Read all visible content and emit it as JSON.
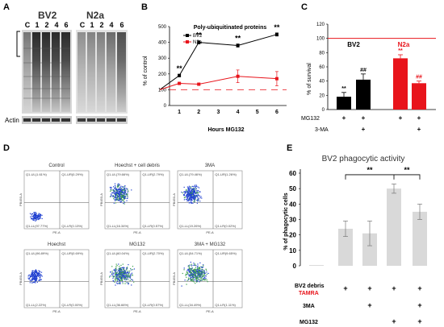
{
  "panels": {
    "A": "A",
    "B": "B",
    "C": "C",
    "D": "D",
    "E": "E"
  },
  "panelA": {
    "bv2_title": "BV2",
    "n2a_title": "N2a",
    "lanes": [
      "C",
      "1",
      "2",
      "4",
      "6"
    ],
    "actin_label": "Actin"
  },
  "panelB": {
    "title": "Poly-ubiquitinated proteins",
    "ylabel": "% of control",
    "xlabel": "Hours MG132",
    "legend": [
      "BV2",
      "N2a"
    ],
    "star_labels": [
      "**",
      "**",
      "**",
      "**"
    ],
    "colors": {
      "bv2": "#000000",
      "n2a": "#e8141b"
    }
  },
  "panelC": {
    "ylabel": "% of survival",
    "group_labels": [
      "BV2",
      "N2a"
    ],
    "row_labels": [
      "MG132",
      "3-MA"
    ],
    "row_signs": [
      [
        "+",
        "+",
        "+",
        "+"
      ],
      [
        "",
        "+",
        "",
        "+"
      ]
    ],
    "sig_labels": [
      "**",
      "##",
      "**",
      "##"
    ],
    "colors": {
      "bv2": "#000000",
      "n2a": "#e8141b"
    }
  },
  "panelD": {
    "titles": [
      "Control",
      "Hoechst + cell debris",
      "3MA",
      "Hoechst",
      "MG132",
      "3MA + MG132"
    ],
    "quadrants": [
      [
        "Q1-UL(1.61%)",
        "Q1-UR(0.29%)",
        "Q1-LL(97.77%)",
        "Q1-LR(0.13%)"
      ],
      [
        "Q1-UL(79.66%)",
        "Q1-UR(2.79%)",
        "Q1-LL(16.34%)",
        "Q1-LR(0.57%)"
      ],
      [
        "Q1-UL(79.46%)",
        "Q1-UR(1.26%)",
        "Q1-LL(19.26%)",
        "Q1-LR(0.02%)"
      ],
      [
        "Q1-UL(96.89%)",
        "Q1-UR(0.69%)",
        "Q1-LL(2.22%)",
        "Q1-LR(0.00%)"
      ],
      [
        "Q1-UL(60.04%)",
        "Q1-UR(2.70%)",
        "Q1-LL(36.66%)",
        "Q1-LR(0.57%)"
      ],
      [
        "Q1-UL(54.71%)",
        "Q1-UR(9.65%)",
        "Q1-LL(34.49%)",
        "Q1-LR(1.11%)"
      ]
    ],
    "axis_y": "PB450-A",
    "axis_x": "PE-A"
  },
  "panelE": {
    "title": "BV2 phagocytic activity",
    "ylabel": "% of phagocytic cells",
    "row_labels": [
      "BV2 debris",
      "TAMRA",
      "3MA",
      "MG132"
    ],
    "row_signs": [
      [
        "+",
        "+",
        "+",
        "+"
      ],
      [
        "",
        "+",
        "",
        "+"
      ],
      [
        "",
        "",
        "+",
        "+"
      ]
    ],
    "sig_labels": [
      "**",
      "**"
    ],
    "colors": {
      "bar": "#d9d9d9",
      "tamra": "#e8141b"
    }
  },
  "chart_data": [
    {
      "type": "line",
      "title": "Poly-ubiquitinated proteins",
      "xlabel": "Hours MG132",
      "ylabel": "% of control",
      "x": [
        0,
        1,
        2,
        4,
        6
      ],
      "xticks": [
        1,
        2,
        3,
        4,
        5,
        6
      ],
      "yticks": [
        0,
        100,
        200,
        300,
        400,
        500
      ],
      "ylim": [
        0,
        500
      ],
      "series": [
        {
          "name": "BV2",
          "values": [
            100,
            190,
            400,
            380,
            450
          ],
          "errors": [
            0,
            8,
            10,
            10,
            10
          ]
        },
        {
          "name": "N2a",
          "values": [
            100,
            140,
            135,
            185,
            170
          ],
          "errors": [
            0,
            5,
            5,
            40,
            45
          ]
        }
      ],
      "significance": [
        {
          "x": 1,
          "label": "**"
        },
        {
          "x": 2,
          "label": "**"
        },
        {
          "x": 4,
          "label": "**"
        },
        {
          "x": 6,
          "label": "**"
        }
      ]
    },
    {
      "type": "bar",
      "ylabel": "% of survival",
      "yticks": [
        0,
        20,
        40,
        60,
        80,
        100,
        120
      ],
      "ylim": [
        0,
        120
      ],
      "categories": [
        "BV2 MG132",
        "BV2 MG132+3-MA",
        "N2a MG132",
        "N2a MG132+3-MA"
      ],
      "values": [
        18,
        42,
        72,
        37
      ],
      "errors": [
        6,
        8,
        5,
        3
      ],
      "reference_line": 100
    },
    {
      "type": "bar",
      "title": "BV2 phagocytic activity",
      "ylabel": "% of phagocytic cells",
      "yticks": [
        0,
        10,
        20,
        30,
        40,
        50,
        60
      ],
      "ylim": [
        0,
        60
      ],
      "categories": [
        "Control",
        "BV2 debris",
        "BV2 debris + 3MA",
        "BV2 debris + MG132",
        "BV2 debris + 3MA + MG132"
      ],
      "values": [
        0.5,
        24,
        21,
        50,
        35
      ],
      "errors": [
        0,
        5,
        8,
        3,
        5
      ]
    }
  ]
}
